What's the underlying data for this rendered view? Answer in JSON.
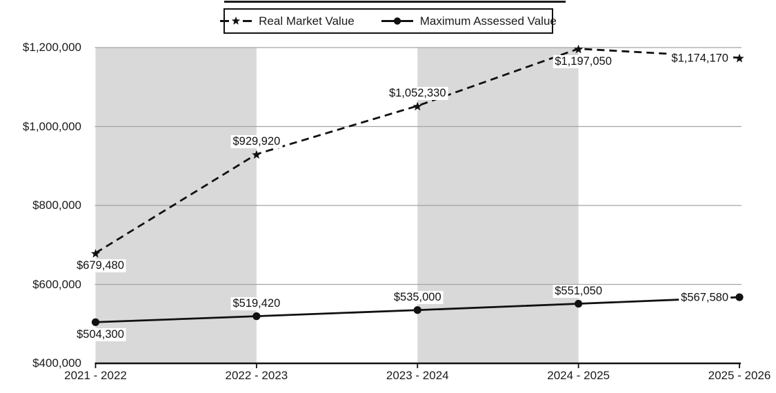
{
  "chart_data": {
    "type": "line",
    "title": "",
    "categories": [
      "2021 - 2022",
      "2022 - 2023",
      "2023 - 2024",
      "2024 - 2025",
      "2025 - 2026"
    ],
    "y_axis": {
      "min": 400000,
      "max": 1200000,
      "tick_step": 200000,
      "tick_labels": [
        "$400,000",
        "$600,000",
        "$800,000",
        "$1,000,000",
        "$1,200,000"
      ]
    },
    "grid": "horizontal gridlines on",
    "legend_position": "top-center",
    "background_bands": {
      "description": "alternating vertical gray bands between category ticks",
      "shaded_category_spans": [
        [
          0,
          1
        ],
        [
          2,
          3
        ]
      ],
      "color": "#d9d9d9"
    },
    "series": [
      {
        "name": "Real Market Value",
        "line_style": "dashed",
        "marker": "star",
        "color": "#111111",
        "values": [
          679480,
          929920,
          1052330,
          1197050,
          1174170
        ],
        "point_labels": [
          "$679,480",
          "$929,920",
          "$1,052,330",
          "$1,197,050",
          "$1,174,170"
        ],
        "label_placements": [
          "below",
          "above",
          "above",
          "below",
          "left"
        ]
      },
      {
        "name": "Maximum Assessed Value",
        "line_style": "solid",
        "marker": "circle",
        "color": "#111111",
        "values": [
          504300,
          519420,
          535000,
          551050,
          567580
        ],
        "point_labels": [
          "$504,300",
          "$519,420",
          "$535,000",
          "$551,050",
          "$567,580"
        ],
        "label_placements": [
          "below",
          "above",
          "above",
          "above",
          "left"
        ]
      }
    ]
  },
  "colors": {
    "band": "#d9d9d9",
    "gridline": "#a3a3a3",
    "axis": "#111111",
    "line": "#111111",
    "label_bg": "#ffffff",
    "text": "#1a1a1a"
  }
}
